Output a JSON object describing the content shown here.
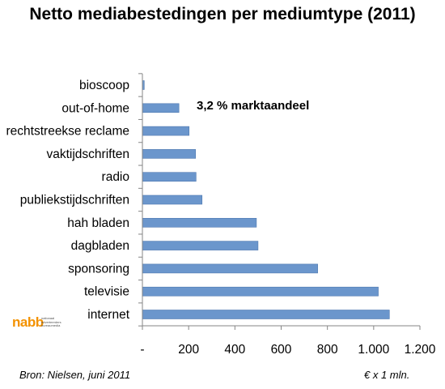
{
  "chart_data": {
    "type": "bar",
    "orientation": "horizontal",
    "title": "Netto mediabestedingen per mediumtype (2011)",
    "categories": [
      "bioscoop",
      "out-of-home",
      "rechtstreekse reclame",
      "vaktijdschriften",
      "radio",
      "publiekstijdschriften",
      "hah bladen",
      "dagbladen",
      "sponsoring",
      "televisie",
      "internet"
    ],
    "values": [
      8,
      158,
      202,
      230,
      232,
      258,
      493,
      500,
      758,
      1020,
      1068
    ],
    "xlim": [
      0,
      1200
    ],
    "xticks": [
      0,
      200,
      400,
      600,
      800,
      1000,
      1200
    ],
    "xtick_labels": [
      "-",
      "200",
      "400",
      "600",
      "800",
      "1.000",
      "1.200"
    ],
    "grid": false,
    "legend": "none",
    "bar_color": "#6b96cc",
    "bar_border_color": "#4f79b0",
    "axis_color": "#868686",
    "annotation": "3,2 % marktaandeel"
  },
  "footer": {
    "source": "Bron: Nielsen, juni 2011",
    "unit": "€ x 1 mln."
  },
  "logo": {
    "word": "nabb",
    "tagline": "nationaal adverteerders bureaumedia",
    "color": "#f39200"
  }
}
